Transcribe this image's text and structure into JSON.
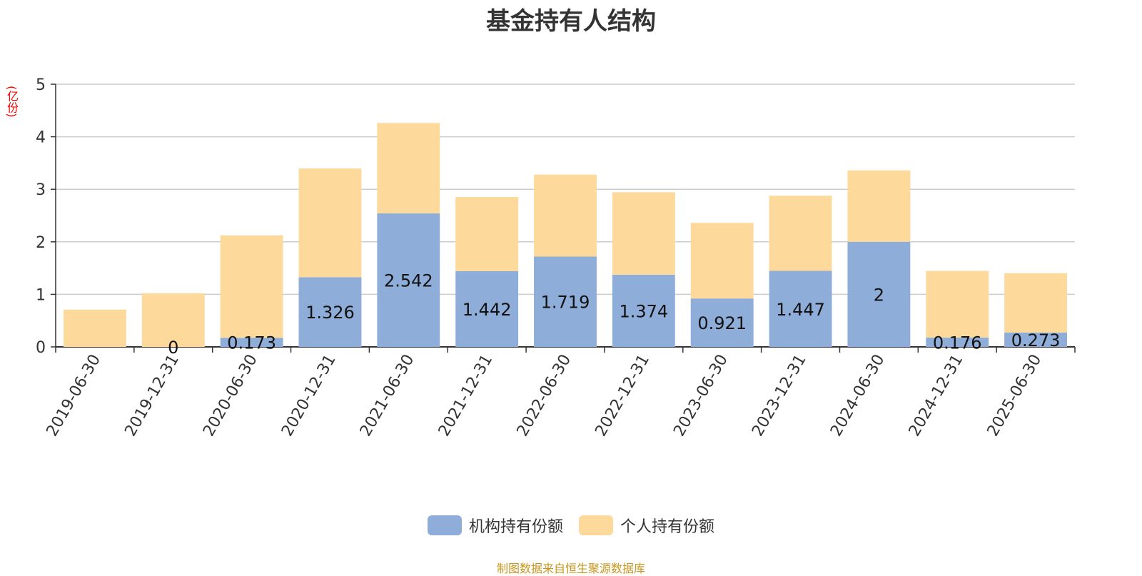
{
  "chart_data": {
    "type": "bar",
    "stacked": true,
    "title": "基金持有人结构",
    "ylabel": "(亿份)",
    "ylim": [
      0,
      5
    ],
    "yticks": [
      0,
      1,
      2,
      3,
      4,
      5
    ],
    "grid": true,
    "legend_position": "bottom-center",
    "categories": [
      "2019-06-30",
      "2019-12-31",
      "2020-06-30",
      "2020-12-31",
      "2021-06-30",
      "2021-12-31",
      "2022-06-30",
      "2022-12-31",
      "2023-06-30",
      "2023-12-31",
      "2024-06-30",
      "2024-12-31",
      "2025-06-30"
    ],
    "series": [
      {
        "name": "机构持有份额",
        "color": "#8eadd8",
        "values": [
          0,
          0,
          0.173,
          1.326,
          2.542,
          1.442,
          1.719,
          1.374,
          0.921,
          1.447,
          2,
          0.176,
          0.273
        ],
        "labels": [
          "",
          "0",
          "0.173",
          "1.326",
          "2.542",
          "1.442",
          "1.719",
          "1.374",
          "0.921",
          "1.447",
          "2",
          "0.176",
          "0.273"
        ]
      },
      {
        "name": "个人持有份额",
        "color": "#fdd99b",
        "values": [
          0.71,
          1.02,
          1.95,
          2.07,
          1.72,
          1.41,
          1.56,
          1.57,
          1.44,
          1.43,
          1.36,
          1.27,
          1.13
        ]
      }
    ],
    "source": "制图数据来自恒生聚源数据库"
  }
}
